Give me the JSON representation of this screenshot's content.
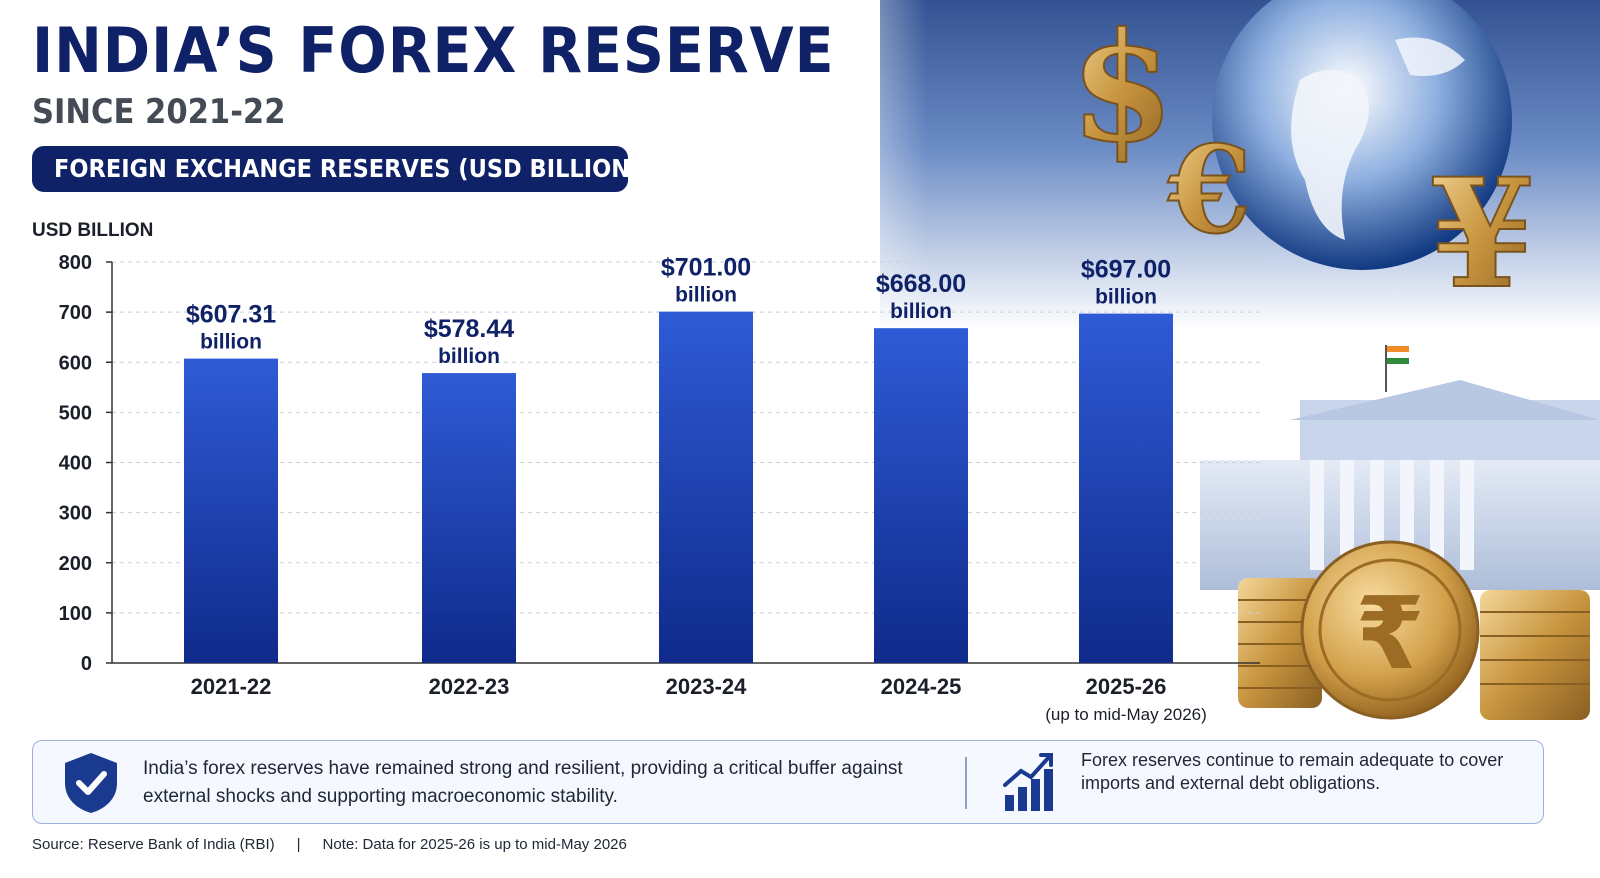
{
  "header": {
    "title": "INDIA’S FOREX RESERVE",
    "subtitle": "SINCE 2021-22",
    "pill_label": "FOREIGN EXCHANGE RESERVES (USD BILLION)"
  },
  "chart_data": {
    "type": "bar",
    "ylabel": "USD BILLION",
    "ylim": [
      0,
      800
    ],
    "yticks": [
      0,
      100,
      200,
      300,
      400,
      500,
      600,
      700,
      800
    ],
    "grid": true,
    "categories": [
      "2021-22",
      "2022-23",
      "2023-24",
      "2024-25",
      "2025-26"
    ],
    "category_notes": [
      "",
      "",
      "",
      "",
      "(up to mid-May 2026)"
    ],
    "values": [
      607.31,
      578.44,
      701.0,
      668.0,
      697.0
    ],
    "value_labels": [
      "$607.31",
      "$578.44",
      "$701.00",
      "$668.00",
      "$697.00"
    ],
    "value_unit_label": "billion",
    "colors": {
      "bar_top": "#2f5bd6",
      "bar_bottom": "#0f2a8a",
      "label": "#0f2167",
      "axis": "#333333"
    }
  },
  "info": {
    "left_text": "India’s forex reserves have remained strong and resilient, providing a critical buffer against external shocks and supporting macroeconomic stability.",
    "right_text": "Forex reserves continue to remain adequate to cover imports and external debt obligations."
  },
  "footer": {
    "source": "Source: Reserve Bank of India (RBI)",
    "separator": "|",
    "note": "Note: Data for 2025-26 is up to mid-May 2026"
  },
  "decor": {
    "currency_symbols": [
      "$",
      "€",
      "¥",
      "₹"
    ],
    "icons": [
      "globe-icon",
      "flag-icon",
      "bank-building-icon",
      "coin-stack-icon",
      "shield-check-icon",
      "growth-chart-icon"
    ]
  }
}
